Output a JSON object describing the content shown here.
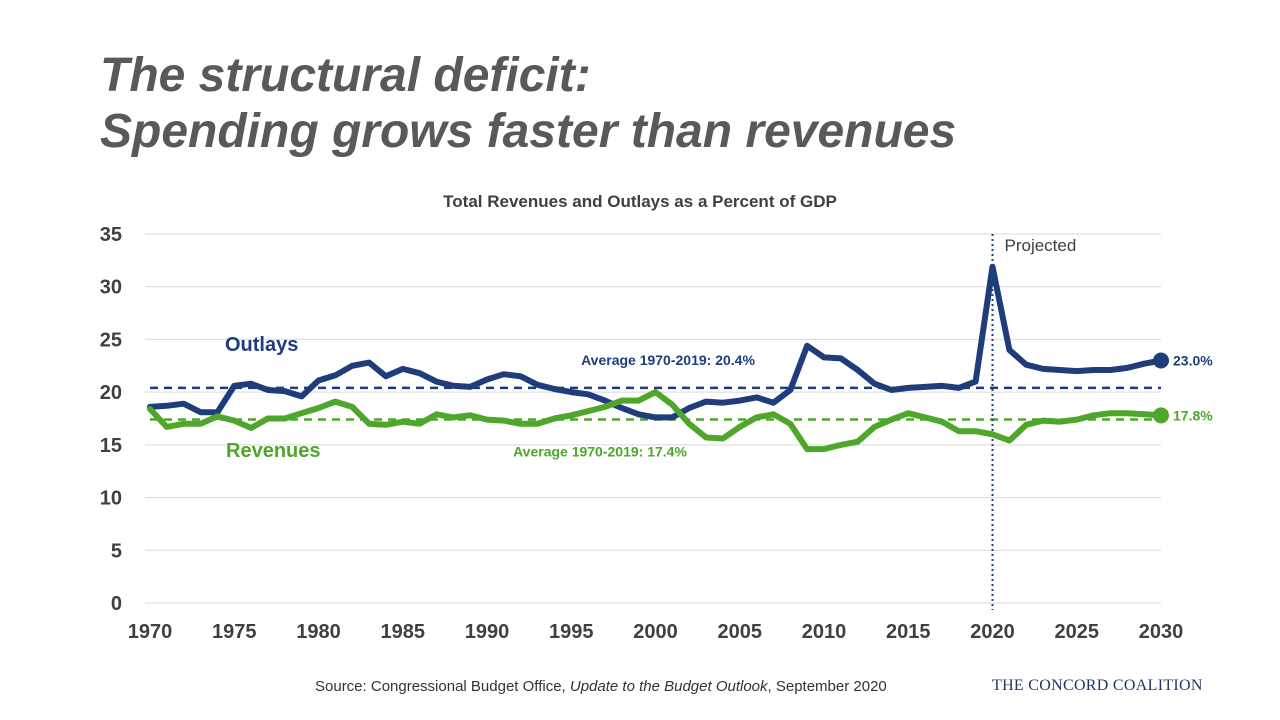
{
  "slide": {
    "title_line1": "The structural deficit:",
    "title_line2": "Spending grows faster than revenues"
  },
  "source": {
    "prefix": "Source: Congressional Budget Office, ",
    "publication": "Update to the Budget Outlook",
    "suffix": ", September 2020"
  },
  "logo": {
    "text": "THE CONCORD COALITION"
  },
  "colors": {
    "outlays": "#1f3d7a",
    "revenues": "#4ea72a",
    "projection_line": "#1f3d7a",
    "grid": "#d9d9d9",
    "title_gray": "#595959"
  },
  "chart_data": {
    "type": "line",
    "title": "Total Revenues and Outlays as a Percent of GDP",
    "xlim": [
      1970,
      2030
    ],
    "ylim": [
      0,
      35
    ],
    "x_ticks": [
      1970,
      1975,
      1980,
      1985,
      1990,
      1995,
      2000,
      2005,
      2010,
      2015,
      2020,
      2025,
      2030
    ],
    "y_ticks": [
      0,
      5,
      10,
      15,
      20,
      25,
      30,
      35
    ],
    "grid": true,
    "series": [
      {
        "name": "Outlays",
        "color": "#1f3d7a",
        "x": [
          1970,
          1971,
          1972,
          1973,
          1974,
          1975,
          1976,
          1977,
          1978,
          1979,
          1980,
          1981,
          1982,
          1983,
          1984,
          1985,
          1986,
          1987,
          1988,
          1989,
          1990,
          1991,
          1992,
          1993,
          1994,
          1995,
          1996,
          1997,
          1998,
          1999,
          2000,
          2001,
          2002,
          2003,
          2004,
          2005,
          2006,
          2007,
          2008,
          2009,
          2010,
          2011,
          2012,
          2013,
          2014,
          2015,
          2016,
          2017,
          2018,
          2019,
          2020,
          2021,
          2022,
          2023,
          2024,
          2025,
          2026,
          2027,
          2028,
          2029,
          2030
        ],
        "values": [
          18.6,
          18.7,
          18.9,
          18.1,
          18.1,
          20.6,
          20.8,
          20.2,
          20.1,
          19.6,
          21.1,
          21.6,
          22.5,
          22.8,
          21.5,
          22.2,
          21.8,
          21.0,
          20.6,
          20.5,
          21.2,
          21.7,
          21.5,
          20.7,
          20.3,
          20.0,
          19.8,
          19.2,
          18.5,
          17.9,
          17.6,
          17.6,
          18.5,
          19.1,
          19.0,
          19.2,
          19.5,
          19.0,
          20.2,
          24.4,
          23.3,
          23.2,
          22.1,
          20.8,
          20.2,
          20.4,
          20.5,
          20.6,
          20.4,
          21.0,
          31.9,
          24.0,
          22.6,
          22.2,
          22.1,
          22.0,
          22.1,
          22.1,
          22.3,
          22.7,
          23.0
        ]
      },
      {
        "name": "Revenues",
        "color": "#4ea72a",
        "x": [
          1970,
          1971,
          1972,
          1973,
          1974,
          1975,
          1976,
          1977,
          1978,
          1979,
          1980,
          1981,
          1982,
          1983,
          1984,
          1985,
          1986,
          1987,
          1988,
          1989,
          1990,
          1991,
          1992,
          1993,
          1994,
          1995,
          1996,
          1997,
          1998,
          1999,
          2000,
          2001,
          2002,
          2003,
          2004,
          2005,
          2006,
          2007,
          2008,
          2009,
          2010,
          2011,
          2012,
          2013,
          2014,
          2015,
          2016,
          2017,
          2018,
          2019,
          2020,
          2021,
          2022,
          2023,
          2024,
          2025,
          2026,
          2027,
          2028,
          2029,
          2030
        ],
        "values": [
          18.4,
          16.7,
          17.0,
          17.0,
          17.7,
          17.3,
          16.6,
          17.5,
          17.5,
          18.0,
          18.5,
          19.1,
          18.6,
          17.0,
          16.9,
          17.2,
          17.0,
          17.9,
          17.6,
          17.8,
          17.4,
          17.3,
          17.0,
          17.0,
          17.5,
          17.8,
          18.2,
          18.6,
          19.2,
          19.2,
          20.0,
          18.8,
          17.0,
          15.7,
          15.6,
          16.7,
          17.6,
          17.9,
          17.0,
          14.6,
          14.6,
          15.0,
          15.3,
          16.7,
          17.4,
          18.0,
          17.6,
          17.2,
          16.3,
          16.3,
          16.0,
          15.4,
          16.9,
          17.3,
          17.2,
          17.4,
          17.8,
          18.0,
          18.0,
          17.9,
          17.8
        ]
      }
    ],
    "averages": [
      {
        "series": "Outlays",
        "value": 20.4,
        "label": "Average 1970-2019: 20.4%",
        "color": "#1f3d7a"
      },
      {
        "series": "Revenues",
        "value": 17.4,
        "label": "Average 1970-2019: 17.4%",
        "color": "#4ea72a"
      }
    ],
    "series_labels": [
      {
        "series": "Outlays",
        "text": "Outlays"
      },
      {
        "series": "Revenues",
        "text": "Revenues"
      }
    ],
    "end_labels": [
      {
        "series": "Outlays",
        "text": "23.0%"
      },
      {
        "series": "Revenues",
        "text": "17.8%"
      }
    ],
    "projection": {
      "x": 2020,
      "label": "Projected"
    }
  }
}
